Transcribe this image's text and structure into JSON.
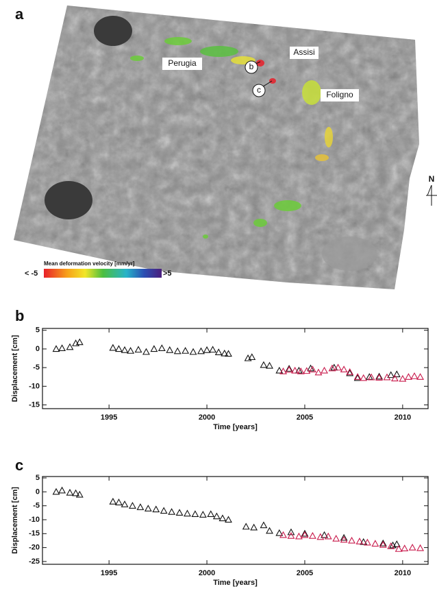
{
  "map": {
    "panel_label": "a",
    "places": [
      "Perugia",
      "Assisi",
      "Foligno"
    ],
    "points": [
      "b",
      "c"
    ],
    "north": "N",
    "colorbar": {
      "title": "Mean deformation velocity [mm/yr]",
      "min_label": "< -5",
      "max_label": ">5"
    }
  },
  "chart_data": [
    {
      "type": "scatter",
      "panel_label": "b",
      "ylabel": "Displacement [cm]",
      "xlabel": "Time [years]",
      "xlim": [
        1991.6,
        2011.3
      ],
      "xticks": [
        1995,
        2000,
        2005,
        2010
      ],
      "ylim": [
        -16,
        5.5
      ],
      "yticks": [
        5,
        0,
        -5,
        -10,
        -15
      ],
      "series": [
        {
          "color": "#111111",
          "x": [
            1992.3,
            1992.6,
            1993.0,
            1993.3,
            1993.5,
            1995.2,
            1995.5,
            1995.8,
            1996.1,
            1996.5,
            1996.9,
            1997.3,
            1997.7,
            1998.1,
            1998.5,
            1998.9,
            1999.3,
            1999.7,
            2000.0,
            2000.3,
            2000.6,
            2000.9,
            2001.1,
            2002.1,
            2002.3,
            2002.9,
            2003.2,
            2003.7,
            2004.2,
            2004.7,
            2005.3,
            2006.5,
            2007.3,
            2007.7,
            2008.3,
            2008.8,
            2009.4,
            2009.7
          ],
          "values": [
            0,
            0.2,
            0.5,
            1.5,
            1.8,
            0.3,
            0,
            -0.3,
            -0.5,
            -0.2,
            -0.8,
            0,
            0.2,
            -0.3,
            -0.6,
            -0.5,
            -0.8,
            -0.6,
            -0.3,
            -0.2,
            -0.9,
            -1.2,
            -1.3,
            -2.5,
            -2.2,
            -4.3,
            -4.5,
            -5.8,
            -5.3,
            -5.8,
            -5.2,
            -5,
            -6.5,
            -7.8,
            -7.5,
            -7.4,
            -7,
            -6.8
          ]
        },
        {
          "color": "#c8184a",
          "x": [
            2003.9,
            2004.2,
            2004.5,
            2004.8,
            2005.1,
            2005.4,
            2005.7,
            2006.0,
            2006.4,
            2006.7,
            2007.0,
            2007.3,
            2007.7,
            2008.0,
            2008.4,
            2008.8,
            2009.2,
            2009.6,
            2010.0,
            2010.3,
            2010.6,
            2010.9
          ],
          "values": [
            -6,
            -5.6,
            -5.8,
            -6,
            -5.9,
            -5.5,
            -6.3,
            -5.8,
            -5.2,
            -5,
            -5.5,
            -6.2,
            -7.5,
            -7.8,
            -7.6,
            -7.7,
            -7.6,
            -7.9,
            -8,
            -7.5,
            -7.3,
            -7.5
          ]
        }
      ]
    },
    {
      "type": "scatter",
      "panel_label": "c",
      "ylabel": "Displacement [cm]",
      "xlabel": "Time [years]",
      "xlim": [
        1991.6,
        2011.3
      ],
      "xticks": [
        1995,
        2000,
        2005,
        2010
      ],
      "ylim": [
        -26,
        5.5
      ],
      "yticks": [
        5,
        0,
        -5,
        -10,
        -15,
        -20,
        -25
      ],
      "series": [
        {
          "color": "#111111",
          "x": [
            1992.3,
            1992.6,
            1993.0,
            1993.3,
            1993.5,
            1995.2,
            1995.5,
            1995.8,
            1996.2,
            1996.6,
            1997.0,
            1997.4,
            1997.8,
            1998.2,
            1998.6,
            1999.0,
            1999.4,
            1999.8,
            2000.2,
            2000.5,
            2000.8,
            2001.1,
            2002.0,
            2002.4,
            2002.9,
            2003.2,
            2003.7,
            2004.3,
            2005.0,
            2006.0,
            2007.0,
            2008.0,
            2009.0,
            2009.5,
            2009.7
          ],
          "values": [
            0,
            0.5,
            -0.3,
            -0.5,
            -1,
            -3.5,
            -3.8,
            -4.5,
            -5,
            -5.5,
            -6,
            -6.3,
            -6.8,
            -7.2,
            -7.5,
            -7.8,
            -8,
            -8.2,
            -8,
            -8.8,
            -9.5,
            -10,
            -12.5,
            -12.8,
            -12,
            -14,
            -14.8,
            -14.5,
            -15,
            -15.5,
            -16.5,
            -18,
            -18.5,
            -19.2,
            -18.8
          ]
        },
        {
          "color": "#c8184a",
          "x": [
            2003.9,
            2004.3,
            2004.7,
            2005.0,
            2005.4,
            2005.8,
            2006.2,
            2006.6,
            2007.0,
            2007.4,
            2007.8,
            2008.2,
            2008.6,
            2009.0,
            2009.4,
            2009.8,
            2010.1,
            2010.5,
            2010.9
          ],
          "values": [
            -15.5,
            -15.8,
            -16,
            -15.5,
            -15.8,
            -16.2,
            -16,
            -16.8,
            -17.2,
            -17.5,
            -17.8,
            -18.2,
            -18.6,
            -19,
            -19.5,
            -20.5,
            -20.3,
            -20,
            -20.2
          ]
        }
      ]
    }
  ]
}
